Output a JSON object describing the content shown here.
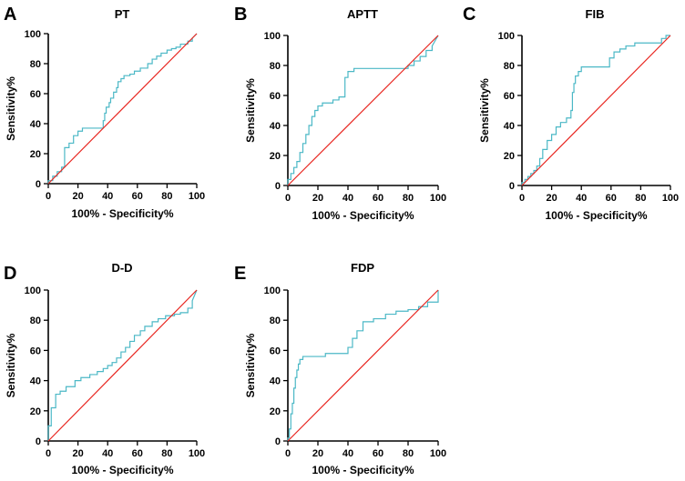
{
  "colors": {
    "roc": "#4bb8c6",
    "reference": "#e8251f",
    "axis": "#000000"
  },
  "chart_data": [
    {
      "type": "line",
      "letter": "A",
      "title": "PT",
      "xlabel": "100% - Specificity%",
      "ylabel": "Sensitivity%",
      "xlim": [
        0,
        100
      ],
      "ylim": [
        0,
        100
      ],
      "xticks": [
        "0",
        "20",
        "40",
        "60",
        "80",
        "100"
      ],
      "yticks": [
        "0",
        "20",
        "40",
        "60",
        "80",
        "100"
      ],
      "series": [
        {
          "name": "ROC",
          "x": [
            0,
            0,
            3,
            3,
            6,
            6,
            9,
            9,
            11,
            11,
            14,
            14,
            17,
            17,
            20,
            20,
            23,
            23,
            37,
            37,
            38,
            38,
            39,
            39,
            41,
            41,
            42,
            42,
            44,
            44,
            46,
            46,
            47,
            47,
            49,
            49,
            51,
            51,
            55,
            55,
            58,
            58,
            62,
            62,
            67,
            67,
            70,
            70,
            73,
            73,
            76,
            76,
            80,
            80,
            83,
            83,
            86,
            86,
            89,
            89,
            94,
            94,
            97,
            97,
            100
          ],
          "y": [
            0,
            2,
            2,
            5,
            5,
            8,
            8,
            11,
            11,
            24,
            24,
            27,
            27,
            32,
            32,
            35,
            35,
            37,
            37,
            42,
            42,
            47,
            47,
            51,
            51,
            54,
            54,
            57,
            57,
            61,
            61,
            64,
            64,
            68,
            68,
            70,
            70,
            72,
            72,
            73,
            73,
            75,
            75,
            77,
            77,
            80,
            80,
            83,
            83,
            85,
            85,
            87,
            87,
            89,
            89,
            90,
            90,
            91,
            91,
            93,
            93,
            95,
            95,
            97,
            100
          ]
        },
        {
          "name": "Reference",
          "x": [
            0,
            100
          ],
          "y": [
            0,
            100
          ]
        }
      ]
    },
    {
      "type": "line",
      "letter": "B",
      "title": "APTT",
      "xlabel": "100% - Specificity%",
      "ylabel": "Sensitivity%",
      "xlim": [
        0,
        100
      ],
      "ylim": [
        0,
        100
      ],
      "xticks": [
        "0",
        "20",
        "40",
        "60",
        "80",
        "100"
      ],
      "yticks": [
        "0",
        "20",
        "40",
        "60",
        "80",
        "100"
      ],
      "series": [
        {
          "name": "ROC",
          "x": [
            0,
            0,
            2,
            2,
            4,
            4,
            6,
            6,
            8,
            8,
            10,
            10,
            12,
            12,
            14,
            14,
            16,
            16,
            18,
            18,
            20,
            20,
            23,
            23,
            26,
            26,
            30,
            30,
            34,
            34,
            38,
            38,
            40,
            40,
            44,
            44,
            60,
            60,
            80,
            80,
            84,
            84,
            88,
            88,
            92,
            92,
            96,
            96,
            100
          ],
          "y": [
            0,
            4,
            4,
            8,
            8,
            12,
            12,
            16,
            16,
            22,
            22,
            28,
            28,
            34,
            34,
            40,
            40,
            46,
            46,
            50,
            50,
            53,
            53,
            55,
            55,
            55,
            55,
            57,
            57,
            59,
            59,
            72,
            72,
            76,
            76,
            78,
            78,
            78,
            78,
            80,
            80,
            83,
            83,
            86,
            86,
            90,
            90,
            93,
            100
          ]
        },
        {
          "name": "Reference",
          "x": [
            0,
            100
          ],
          "y": [
            0,
            100
          ]
        }
      ]
    },
    {
      "type": "line",
      "letter": "C",
      "title": "FIB",
      "xlabel": "100% - Specificity%",
      "ylabel": "Sensitivity%",
      "xlim": [
        0,
        100
      ],
      "ylim": [
        0,
        100
      ],
      "xticks": [
        "0",
        "20",
        "40",
        "60",
        "80",
        "100"
      ],
      "yticks": [
        "0",
        "20",
        "40",
        "60",
        "80",
        "100"
      ],
      "series": [
        {
          "name": "ROC",
          "x": [
            0,
            0,
            2,
            2,
            4,
            4,
            6,
            6,
            8,
            8,
            10,
            10,
            12,
            12,
            14,
            14,
            17,
            17,
            20,
            20,
            23,
            23,
            26,
            26,
            30,
            30,
            33,
            33,
            34,
            34,
            35,
            35,
            36,
            36,
            38,
            38,
            40,
            40,
            59,
            59,
            62,
            62,
            66,
            66,
            70,
            70,
            76,
            76,
            94,
            94,
            97,
            97,
            100
          ],
          "y": [
            0,
            2,
            2,
            4,
            4,
            6,
            6,
            8,
            8,
            10,
            10,
            13,
            13,
            18,
            18,
            24,
            24,
            30,
            30,
            34,
            34,
            39,
            39,
            42,
            42,
            45,
            45,
            50,
            50,
            62,
            62,
            68,
            68,
            73,
            73,
            76,
            76,
            79,
            79,
            85,
            85,
            89,
            89,
            91,
            91,
            93,
            93,
            95,
            95,
            98,
            98,
            100,
            100
          ]
        },
        {
          "name": "Reference",
          "x": [
            0,
            100
          ],
          "y": [
            0,
            100
          ]
        }
      ]
    },
    {
      "type": "line",
      "letter": "D",
      "title": "D-D",
      "xlabel": "100% - Specificity%",
      "ylabel": "Sensitivity%",
      "xlim": [
        0,
        100
      ],
      "ylim": [
        0,
        100
      ],
      "xticks": [
        "0",
        "20",
        "40",
        "60",
        "80",
        "100"
      ],
      "yticks": [
        "0",
        "20",
        "40",
        "60",
        "80",
        "100"
      ],
      "series": [
        {
          "name": "ROC",
          "x": [
            0,
            0,
            2,
            2,
            5,
            5,
            8,
            8,
            12,
            12,
            18,
            18,
            22,
            22,
            28,
            28,
            33,
            33,
            37,
            37,
            40,
            40,
            43,
            43,
            46,
            46,
            49,
            49,
            52,
            52,
            55,
            55,
            58,
            58,
            62,
            62,
            65,
            65,
            70,
            70,
            74,
            74,
            79,
            79,
            85,
            85,
            89,
            89,
            94,
            94,
            97,
            97,
            100
          ],
          "y": [
            0,
            10,
            10,
            22,
            22,
            31,
            31,
            33,
            33,
            36,
            36,
            40,
            40,
            42,
            42,
            44,
            44,
            46,
            46,
            48,
            48,
            50,
            50,
            52,
            52,
            55,
            55,
            59,
            59,
            62,
            62,
            66,
            66,
            70,
            70,
            73,
            73,
            76,
            76,
            79,
            79,
            81,
            81,
            83,
            83,
            84,
            84,
            85,
            85,
            88,
            88,
            93,
            100
          ]
        },
        {
          "name": "Reference",
          "x": [
            0,
            100
          ],
          "y": [
            0,
            100
          ]
        }
      ]
    },
    {
      "type": "line",
      "letter": "E",
      "title": "FDP",
      "xlabel": "100% - Specificity%",
      "ylabel": "Sensitivity%",
      "xlim": [
        0,
        100
      ],
      "ylim": [
        0,
        100
      ],
      "xticks": [
        "0",
        "20",
        "40",
        "60",
        "80",
        "100"
      ],
      "yticks": [
        "0",
        "20",
        "40",
        "60",
        "80",
        "100"
      ],
      "series": [
        {
          "name": "ROC",
          "x": [
            0,
            0,
            1,
            1,
            2,
            2,
            3,
            3,
            4,
            4,
            5,
            5,
            6,
            6,
            7,
            7,
            8,
            8,
            10,
            10,
            25,
            25,
            40,
            40,
            43,
            43,
            46,
            46,
            50,
            50,
            57,
            57,
            65,
            65,
            72,
            72,
            80,
            80,
            87,
            87,
            93,
            93,
            100,
            100
          ],
          "y": [
            0,
            2,
            2,
            8,
            8,
            18,
            18,
            25,
            25,
            35,
            35,
            42,
            42,
            47,
            47,
            51,
            51,
            54,
            54,
            56,
            56,
            58,
            58,
            62,
            62,
            68,
            68,
            73,
            73,
            79,
            79,
            81,
            81,
            84,
            84,
            86,
            86,
            87,
            87,
            89,
            89,
            92,
            92,
            100
          ]
        },
        {
          "name": "Reference",
          "x": [
            0,
            100
          ],
          "y": [
            0,
            100
          ]
        }
      ]
    }
  ]
}
